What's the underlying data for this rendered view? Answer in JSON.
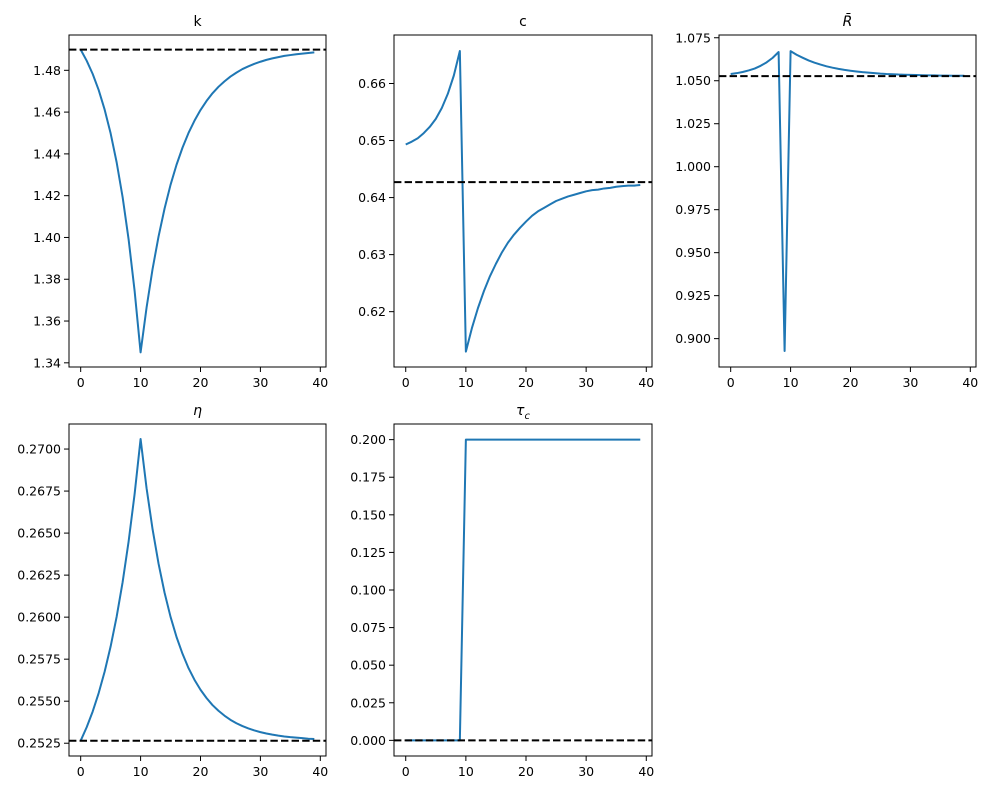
{
  "chart_data": [
    {
      "type": "line",
      "title": "k",
      "title_sub": "",
      "title_italic": false,
      "x": [
        0,
        1,
        2,
        3,
        4,
        5,
        6,
        7,
        8,
        9,
        10,
        11,
        12,
        13,
        14,
        15,
        16,
        17,
        18,
        19,
        20,
        21,
        22,
        23,
        24,
        25,
        26,
        27,
        28,
        29,
        30,
        31,
        32,
        33,
        34,
        35,
        36,
        37,
        38,
        39
      ],
      "values": [
        1.4899,
        1.4846,
        1.4783,
        1.4706,
        1.4612,
        1.4498,
        1.436,
        1.4193,
        1.3991,
        1.3745,
        1.345,
        1.3665,
        1.3849,
        1.4005,
        1.4138,
        1.4252,
        1.4348,
        1.443,
        1.45,
        1.4559,
        1.461,
        1.4653,
        1.469,
        1.4721,
        1.4747,
        1.477,
        1.4789,
        1.4806,
        1.4819,
        1.4831,
        1.4841,
        1.485,
        1.4857,
        1.4863,
        1.4869,
        1.4873,
        1.4877,
        1.488,
        1.4883,
        1.4886
      ],
      "steady_state": 1.4899,
      "xlim": [
        -1.95,
        40.95
      ],
      "ylim": [
        1.338,
        1.4969
      ],
      "xticks": [
        "0",
        "10",
        "20",
        "30",
        "40"
      ],
      "yticks": [
        "1.34",
        "1.36",
        "1.38",
        "1.40",
        "1.42",
        "1.44",
        "1.46",
        "1.48"
      ]
    },
    {
      "type": "line",
      "title": "c",
      "title_sub": "",
      "title_italic": false,
      "x": [
        0,
        1,
        2,
        3,
        4,
        5,
        6,
        7,
        8,
        9,
        10,
        11,
        12,
        13,
        14,
        15,
        16,
        17,
        18,
        19,
        20,
        21,
        22,
        23,
        24,
        25,
        26,
        27,
        28,
        29,
        30,
        31,
        32,
        33,
        34,
        35,
        36,
        37,
        38,
        39
      ],
      "values": [
        0.6493,
        0.6498,
        0.6504,
        0.6513,
        0.6524,
        0.6538,
        0.6557,
        0.6582,
        0.6614,
        0.6657,
        0.613,
        0.6171,
        0.6206,
        0.6236,
        0.6262,
        0.6284,
        0.6304,
        0.6321,
        0.6335,
        0.6347,
        0.6358,
        0.6368,
        0.6376,
        0.6382,
        0.6388,
        0.6394,
        0.6398,
        0.6402,
        0.6405,
        0.6408,
        0.6411,
        0.6413,
        0.6414,
        0.6416,
        0.6417,
        0.6419,
        0.642,
        0.6421,
        0.6421,
        0.6422
      ],
      "steady_state": 0.6427,
      "xlim": [
        -1.95,
        40.95
      ],
      "ylim": [
        0.6103,
        0.6685
      ],
      "xticks": [
        "0",
        "10",
        "20",
        "30",
        "40"
      ],
      "yticks": [
        "0.62",
        "0.63",
        "0.64",
        "0.65",
        "0.66"
      ]
    },
    {
      "type": "line",
      "title": "R̄",
      "title_sub": "",
      "title_italic": true,
      "x": [
        0,
        1,
        2,
        3,
        4,
        5,
        6,
        7,
        8,
        9,
        10,
        11,
        12,
        13,
        14,
        15,
        16,
        17,
        18,
        19,
        20,
        21,
        22,
        23,
        24,
        25,
        26,
        27,
        28,
        29,
        30,
        31,
        32,
        33,
        34,
        35,
        36,
        37,
        38,
        39
      ],
      "values": [
        1.0539,
        1.0544,
        1.0551,
        1.056,
        1.0571,
        1.0587,
        1.0607,
        1.0633,
        1.0667,
        0.8928,
        1.0672,
        1.0651,
        1.0634,
        1.0618,
        1.0605,
        1.0594,
        1.0584,
        1.0576,
        1.0569,
        1.0563,
        1.0558,
        1.0554,
        1.055,
        1.0547,
        1.0544,
        1.0541,
        1.0539,
        1.0538,
        1.0536,
        1.0535,
        1.0534,
        1.0533,
        1.0532,
        1.0531,
        1.0531,
        1.053,
        1.053,
        1.0529,
        1.0529,
        1.0529
      ],
      "steady_state": 1.0527,
      "xlim": [
        -1.95,
        40.95
      ],
      "ylim": [
        0.8835,
        1.0766
      ],
      "xticks": [
        "0",
        "10",
        "20",
        "30",
        "40"
      ],
      "yticks": [
        "0.900",
        "0.925",
        "0.950",
        "0.975",
        "1.000",
        "1.025",
        "1.050",
        "1.075"
      ]
    },
    {
      "type": "line",
      "title": "η",
      "title_sub": "",
      "title_italic": true,
      "x": [
        0,
        1,
        2,
        3,
        4,
        5,
        6,
        7,
        8,
        9,
        10,
        11,
        12,
        13,
        14,
        15,
        16,
        17,
        18,
        19,
        20,
        21,
        22,
        23,
        24,
        25,
        26,
        27,
        28,
        29,
        30,
        31,
        32,
        33,
        34,
        35,
        36,
        37,
        38,
        39
      ],
      "values": [
        0.25265,
        0.25345,
        0.25438,
        0.25548,
        0.25676,
        0.25826,
        0.26002,
        0.26208,
        0.2645,
        0.26732,
        0.2706,
        0.26767,
        0.26523,
        0.26318,
        0.26146,
        0.26002,
        0.25882,
        0.25782,
        0.25697,
        0.25627,
        0.25568,
        0.25519,
        0.25477,
        0.25443,
        0.25414,
        0.25389,
        0.25369,
        0.25352,
        0.25338,
        0.25326,
        0.25316,
        0.25308,
        0.25301,
        0.25295,
        0.2529,
        0.25286,
        0.25283,
        0.2528,
        0.25277,
        0.25275
      ],
      "steady_state": 0.25265,
      "xlim": [
        -1.95,
        40.95
      ],
      "ylim": [
        0.25174,
        0.27149
      ],
      "xticks": [
        "0",
        "10",
        "20",
        "30",
        "40"
      ],
      "yticks": [
        "0.2525",
        "0.2550",
        "0.2575",
        "0.2600",
        "0.2625",
        "0.2650",
        "0.2675",
        "0.2700"
      ]
    },
    {
      "type": "line",
      "title": "τ",
      "title_sub": "c",
      "title_italic": true,
      "x": [
        0,
        1,
        2,
        3,
        4,
        5,
        6,
        7,
        8,
        9,
        10,
        11,
        12,
        13,
        14,
        15,
        16,
        17,
        18,
        19,
        20,
        21,
        22,
        23,
        24,
        25,
        26,
        27,
        28,
        29,
        30,
        31,
        32,
        33,
        34,
        35,
        36,
        37,
        38,
        39
      ],
      "values": [
        0,
        0,
        0,
        0,
        0,
        0,
        0,
        0,
        0,
        0,
        0.2,
        0.2,
        0.2,
        0.2,
        0.2,
        0.2,
        0.2,
        0.2,
        0.2,
        0.2,
        0.2,
        0.2,
        0.2,
        0.2,
        0.2,
        0.2,
        0.2,
        0.2,
        0.2,
        0.2,
        0.2,
        0.2,
        0.2,
        0.2,
        0.2,
        0.2,
        0.2,
        0.2,
        0.2,
        0.2
      ],
      "steady_state": 0,
      "xlim": [
        -1.95,
        40.95
      ],
      "ylim": [
        -0.0104,
        0.2104
      ],
      "xticks": [
        "0",
        "10",
        "20",
        "30",
        "40"
      ],
      "yticks": [
        "0.000",
        "0.025",
        "0.050",
        "0.075",
        "0.100",
        "0.125",
        "0.150",
        "0.175",
        "0.200"
      ]
    }
  ],
  "colors": {
    "series": "#1f77b4",
    "steady_state": "#000000"
  },
  "grid": false,
  "steady_state_style": "dashed"
}
